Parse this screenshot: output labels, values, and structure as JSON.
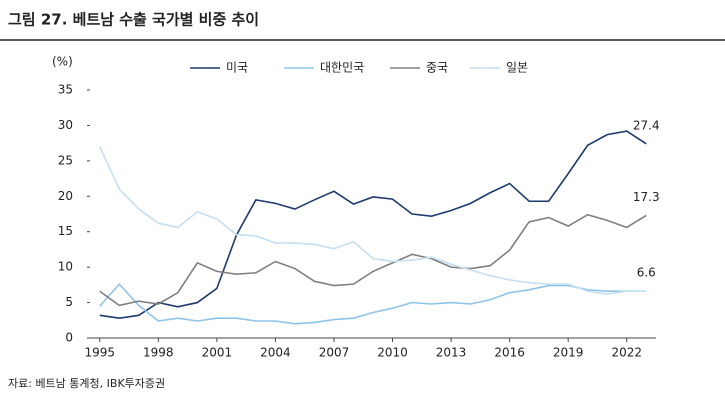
{
  "chart_data": {
    "type": "line",
    "title": "그림 27. 베트남 수출 국가별 비중 추이",
    "y_label": "(%)",
    "source": "자료: 베트남 통계청, IBK투자증권",
    "x": [
      1995,
      1996,
      1997,
      1998,
      1999,
      2000,
      2001,
      2002,
      2003,
      2004,
      2005,
      2006,
      2007,
      2008,
      2009,
      2010,
      2011,
      2012,
      2013,
      2014,
      2015,
      2016,
      2017,
      2018,
      2019,
      2020,
      2021,
      2022,
      2023
    ],
    "xlim": [
      1994.5,
      2023.5
    ],
    "xticks": [
      1995,
      1998,
      2001,
      2004,
      2007,
      2010,
      2013,
      2016,
      2019,
      2022
    ],
    "ylim": [
      0,
      35
    ],
    "yticks": [
      0,
      5,
      10,
      15,
      20,
      25,
      30,
      35
    ],
    "legend": "top",
    "series": [
      {
        "name": "미국",
        "color": "#1f3a6e",
        "label_last": true,
        "values": [
          3.2,
          2.8,
          3.2,
          5.0,
          4.4,
          5.0,
          7.0,
          14.5,
          19.5,
          19.0,
          18.2,
          19.5,
          20.7,
          18.9,
          19.9,
          19.6,
          17.5,
          17.2,
          18.0,
          19.0,
          20.5,
          21.8,
          19.3,
          19.3,
          23.2,
          27.2,
          28.7,
          29.2,
          27.4
        ]
      },
      {
        "name": "대한민국",
        "color": "#8fc4e8",
        "label_last": true,
        "values": [
          4.5,
          7.6,
          4.6,
          2.4,
          2.8,
          2.4,
          2.8,
          2.8,
          2.4,
          2.4,
          2.0,
          2.2,
          2.6,
          2.8,
          3.6,
          4.2,
          5.0,
          4.8,
          5.0,
          4.8,
          5.4,
          6.4,
          6.8,
          7.4,
          7.4,
          6.8,
          6.6,
          6.6,
          6.6
        ]
      },
      {
        "name": "중국",
        "color": "#808080",
        "label_last": true,
        "values": [
          6.6,
          4.6,
          5.2,
          4.8,
          6.4,
          10.6,
          9.4,
          9.0,
          9.2,
          10.8,
          9.8,
          8.0,
          7.4,
          7.6,
          9.4,
          10.6,
          11.8,
          11.2,
          10.0,
          9.8,
          10.2,
          12.4,
          16.4,
          17.0,
          15.8,
          17.4,
          16.6,
          15.6,
          17.3
        ]
      },
      {
        "name": "일본",
        "color": "#c5dff0",
        "label_last": false,
        "values": [
          27.0,
          21.0,
          18.2,
          16.2,
          15.6,
          17.8,
          16.8,
          14.6,
          14.4,
          13.4,
          13.4,
          13.2,
          12.6,
          13.6,
          11.2,
          10.8,
          11.0,
          11.4,
          10.4,
          9.6,
          8.8,
          8.2,
          7.8,
          7.6,
          7.6,
          6.6,
          6.2,
          6.6,
          6.6
        ]
      }
    ]
  }
}
